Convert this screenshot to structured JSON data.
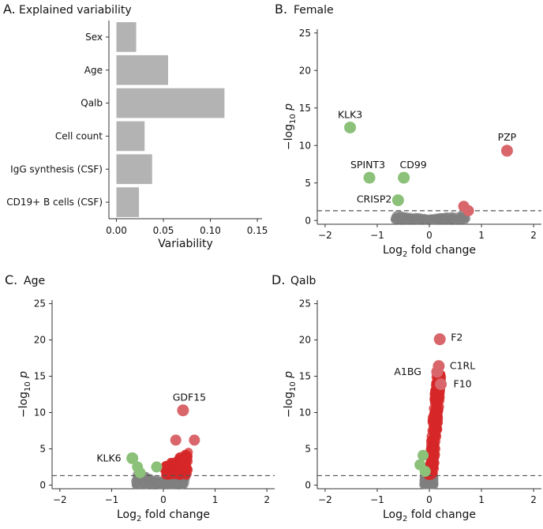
{
  "colors": {
    "bar": "#b3b3b3",
    "grey_pt": "#808080",
    "red_pt": "#d62728",
    "red_lbl": "#d9666a",
    "green_lbl": "#8cc17a",
    "dash": "#555555"
  },
  "chart_data": [
    {
      "id": "A",
      "type": "bar",
      "orientation": "horizontal",
      "panel_letter": "A.",
      "title": "Explained variability",
      "categories": [
        "Sex",
        "Age",
        "Qalb",
        "Cell count",
        "IgG synthesis (CSF)",
        "CD19+ B cells (CSF)"
      ],
      "values": [
        0.021,
        0.055,
        0.115,
        0.03,
        0.038,
        0.024
      ],
      "xlabel": "Variability",
      "xlim": [
        -0.008,
        0.155
      ],
      "xticks": [
        0,
        0.05,
        0.1,
        0.15
      ],
      "xtick_labels": [
        "0.00",
        "0.05",
        "0.10",
        "0.15"
      ]
    },
    {
      "id": "B",
      "type": "scatter",
      "panel_letter": "B.",
      "title": "Female",
      "xlabel": "Log2 fold change",
      "ylabel": "-log10 p",
      "xlim": [
        -2.15,
        2.15
      ],
      "ylim": [
        -0.5,
        25.5
      ],
      "xticks": [
        -2,
        -1,
        0,
        1,
        2
      ],
      "xtick_labels": [
        "−2",
        "−1",
        "0",
        "1",
        "2"
      ],
      "yticks": [
        0,
        5,
        10,
        15,
        20,
        25
      ],
      "ytick_labels": [
        "0",
        "5",
        "10",
        "15",
        "20",
        "25"
      ],
      "threshold": 1.3,
      "grey_cloud": {
        "x_min": -0.68,
        "x_max": 0.72,
        "y_max": 0.9
      },
      "labeled_points": [
        {
          "label": "KLK3",
          "x": -1.52,
          "y": 12.4,
          "dir": "down"
        },
        {
          "label": "SPINT3",
          "x": -1.15,
          "y": 5.7,
          "dir": "down"
        },
        {
          "label": "CD99",
          "x": -0.49,
          "y": 5.7,
          "dir": "down"
        },
        {
          "label": "CRISP2",
          "x": -0.6,
          "y": 2.7,
          "dir": "down"
        },
        {
          "label": "PZP",
          "x": 1.49,
          "y": 9.3,
          "dir": "up"
        }
      ],
      "unlabeled_points": [
        {
          "x": 0.66,
          "y": 1.9,
          "dir": "up"
        },
        {
          "x": 0.75,
          "y": 1.3,
          "dir": "up"
        }
      ]
    },
    {
      "id": "C",
      "type": "scatter",
      "panel_letter": "C.",
      "title": "Age",
      "xlabel": "Log2 fold change",
      "ylabel": "-log10 p",
      "xlim": [
        -2.15,
        2.15
      ],
      "ylim": [
        -0.5,
        25.5
      ],
      "xticks": [
        -2,
        -1,
        0,
        1,
        2
      ],
      "xtick_labels": [
        "−2",
        "−1",
        "0",
        "1",
        "2"
      ],
      "yticks": [
        0,
        5,
        10,
        15,
        20,
        25
      ],
      "ytick_labels": [
        "0",
        "5",
        "10",
        "15",
        "20",
        "25"
      ],
      "threshold": 1.3,
      "grey_cloud": {
        "x_min": -0.55,
        "x_max": 0.45,
        "y_max": 1.8
      },
      "red_cloud": {
        "x_min": 0.02,
        "x_max": 0.5,
        "y_max": 4.8
      },
      "labeled_points": [
        {
          "label": "GDF15",
          "x": 0.38,
          "y": 10.3,
          "dir": "up"
        },
        {
          "label": "KLK6",
          "x": -0.6,
          "y": 3.7,
          "dir": "down"
        }
      ],
      "unlabeled_points": [
        {
          "x": 0.24,
          "y": 6.2,
          "dir": "up"
        },
        {
          "x": 0.6,
          "y": 6.2,
          "dir": "up"
        },
        {
          "x": -0.5,
          "y": 2.5,
          "dir": "down"
        },
        {
          "x": -0.13,
          "y": 2.5,
          "dir": "down"
        },
        {
          "x": -0.45,
          "y": 1.7,
          "dir": "down"
        }
      ]
    },
    {
      "id": "D",
      "type": "scatter",
      "panel_letter": "D.",
      "title": "Qalb",
      "xlabel": "Log2 fold change",
      "ylabel": "-log10 p",
      "xlim": [
        -2.15,
        2.15
      ],
      "ylim": [
        -0.5,
        25.5
      ],
      "xticks": [
        -2,
        -1,
        0,
        1,
        2
      ],
      "xtick_labels": [
        "−2",
        "−1",
        "0",
        "1",
        "2"
      ],
      "yticks": [
        0,
        5,
        10,
        15,
        20,
        25
      ],
      "ytick_labels": [
        "0",
        "5",
        "10",
        "15",
        "20",
        "25"
      ],
      "threshold": 1.3,
      "grey_cloud": {
        "x_min": -0.12,
        "x_max": 0.1,
        "y_max": 1.5
      },
      "red_stream": {
        "y_max": 15.5
      },
      "labeled_points": [
        {
          "label": "F2",
          "x": 0.2,
          "y": 20.1,
          "dir": "up"
        },
        {
          "label": "A1BG",
          "x": 0.15,
          "y": 15.6,
          "dir": "up"
        },
        {
          "label": "C1RL",
          "x": 0.18,
          "y": 16.4,
          "dir": "up"
        },
        {
          "label": "F10",
          "x": 0.22,
          "y": 13.9,
          "dir": "up"
        }
      ],
      "unlabeled_points": [
        {
          "x": -0.12,
          "y": 4.1,
          "dir": "down"
        },
        {
          "x": -0.18,
          "y": 2.8,
          "dir": "down"
        },
        {
          "x": -0.08,
          "y": 1.9,
          "dir": "down"
        }
      ]
    }
  ]
}
